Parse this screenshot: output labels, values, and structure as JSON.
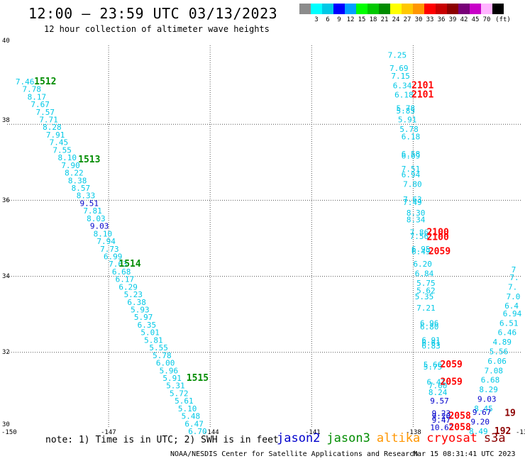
{
  "header": {
    "title": "12:00 — 23:59 UTC 03/13/2023",
    "subtitle": "12 hour collection of altimeter wave heights"
  },
  "color_scale": {
    "unit": "(ft)",
    "colors": [
      "#8c8c8c",
      "#00ffff",
      "#00c8e6",
      "#0000ff",
      "#00a0ff",
      "#00ff00",
      "#00c800",
      "#008c00",
      "#ffff00",
      "#ffc800",
      "#ff9600",
      "#ff0000",
      "#c80000",
      "#8c0000",
      "#780078",
      "#c800c8",
      "#ffb4ff",
      "#000000"
    ],
    "labels": [
      "3",
      "6",
      "9",
      "12",
      "15",
      "18",
      "21",
      "24",
      "27",
      "30",
      "33",
      "36",
      "39",
      "42",
      "45",
      "70"
    ]
  },
  "axes": {
    "x_ticks": [
      "-150",
      "-147",
      "-144",
      "-141",
      "-138",
      "-13"
    ],
    "y_ticks": [
      "30",
      "32",
      "34",
      "36",
      "38",
      "40"
    ],
    "lon_range": [
      -150,
      -135
    ],
    "lat_range": [
      30,
      40
    ],
    "grid": "dotted"
  },
  "satellite_colors": {
    "jason2": "#0000cc",
    "jason3": "#008c00",
    "altika": "#ff9600",
    "cryosat": "#ff0000",
    "s3a": "#8c0000",
    "cyan": "#00c8e6"
  },
  "wave_heights": [
    {
      "lon": -149.75,
      "lat": 39.05,
      "v": "7.46",
      "c": "cyan"
    },
    {
      "lon": -149.55,
      "lat": 38.85,
      "v": "7.78",
      "c": "cyan"
    },
    {
      "lon": -149.4,
      "lat": 38.65,
      "v": "8.17",
      "c": "cyan"
    },
    {
      "lon": -149.3,
      "lat": 38.45,
      "v": "7.67",
      "c": "cyan"
    },
    {
      "lon": -149.15,
      "lat": 38.25,
      "v": "7.57",
      "c": "cyan"
    },
    {
      "lon": -149.05,
      "lat": 38.05,
      "v": "7.71",
      "c": "cyan"
    },
    {
      "lon": -148.95,
      "lat": 37.85,
      "v": "8.28",
      "c": "cyan"
    },
    {
      "lon": -148.85,
      "lat": 37.65,
      "v": "7.91",
      "c": "cyan"
    },
    {
      "lon": -148.75,
      "lat": 37.45,
      "v": "7.45",
      "c": "cyan"
    },
    {
      "lon": -148.65,
      "lat": 37.25,
      "v": "7.55",
      "c": "cyan"
    },
    {
      "lon": -148.5,
      "lat": 37.05,
      "v": "8.10",
      "c": "cyan"
    },
    {
      "lon": -148.4,
      "lat": 36.85,
      "v": "7.90",
      "c": "cyan"
    },
    {
      "lon": -148.3,
      "lat": 36.65,
      "v": "8.22",
      "c": "cyan"
    },
    {
      "lon": -148.2,
      "lat": 36.45,
      "v": "8.38",
      "c": "cyan"
    },
    {
      "lon": -148.1,
      "lat": 36.25,
      "v": "8.57",
      "c": "cyan"
    },
    {
      "lon": -147.95,
      "lat": 36.05,
      "v": "8.33",
      "c": "cyan"
    },
    {
      "lon": -147.85,
      "lat": 35.85,
      "v": "9.51",
      "c": "jason2"
    },
    {
      "lon": -147.75,
      "lat": 35.65,
      "v": "7.81",
      "c": "cyan"
    },
    {
      "lon": -147.65,
      "lat": 35.45,
      "v": "8.03",
      "c": "cyan"
    },
    {
      "lon": -147.55,
      "lat": 35.25,
      "v": "9.03",
      "c": "jason2"
    },
    {
      "lon": -147.45,
      "lat": 35.05,
      "v": "8.10",
      "c": "cyan"
    },
    {
      "lon": -147.35,
      "lat": 34.85,
      "v": "7.94",
      "c": "cyan"
    },
    {
      "lon": -147.25,
      "lat": 34.65,
      "v": "7.73",
      "c": "cyan"
    },
    {
      "lon": -147.15,
      "lat": 34.45,
      "v": "6.99",
      "c": "cyan"
    },
    {
      "lon": -147.0,
      "lat": 34.25,
      "v": "7.63",
      "c": "cyan"
    },
    {
      "lon": -146.9,
      "lat": 34.05,
      "v": "6.68",
      "c": "cyan"
    },
    {
      "lon": -146.8,
      "lat": 33.85,
      "v": "6.17",
      "c": "cyan"
    },
    {
      "lon": -146.7,
      "lat": 33.65,
      "v": "6.29",
      "c": "cyan"
    },
    {
      "lon": -146.55,
      "lat": 33.45,
      "v": "5.23",
      "c": "cyan"
    },
    {
      "lon": -146.45,
      "lat": 33.25,
      "v": "6.38",
      "c": "cyan"
    },
    {
      "lon": -146.35,
      "lat": 33.05,
      "v": "5.93",
      "c": "cyan"
    },
    {
      "lon": -146.25,
      "lat": 32.85,
      "v": "5.97",
      "c": "cyan"
    },
    {
      "lon": -146.15,
      "lat": 32.65,
      "v": "6.35",
      "c": "cyan"
    },
    {
      "lon": -146.05,
      "lat": 32.45,
      "v": "5.01",
      "c": "cyan"
    },
    {
      "lon": -145.95,
      "lat": 32.25,
      "v": "5.81",
      "c": "cyan"
    },
    {
      "lon": -145.8,
      "lat": 32.05,
      "v": "5.55",
      "c": "cyan"
    },
    {
      "lon": -145.7,
      "lat": 31.85,
      "v": "5.78",
      "c": "cyan"
    },
    {
      "lon": -145.6,
      "lat": 31.65,
      "v": "6.00",
      "c": "cyan"
    },
    {
      "lon": -145.5,
      "lat": 31.45,
      "v": "5.96",
      "c": "cyan"
    },
    {
      "lon": -145.4,
      "lat": 31.25,
      "v": "5.91",
      "c": "cyan"
    },
    {
      "lon": -145.3,
      "lat": 31.05,
      "v": "5.31",
      "c": "cyan"
    },
    {
      "lon": -145.2,
      "lat": 30.85,
      "v": "5.72",
      "c": "cyan"
    },
    {
      "lon": -145.05,
      "lat": 30.65,
      "v": "5.61",
      "c": "cyan"
    },
    {
      "lon": -144.95,
      "lat": 30.45,
      "v": "5.10",
      "c": "cyan"
    },
    {
      "lon": -144.85,
      "lat": 30.25,
      "v": "5.48",
      "c": "cyan"
    },
    {
      "lon": -144.75,
      "lat": 30.05,
      "v": "6.47",
      "c": "cyan"
    },
    {
      "lon": -144.65,
      "lat": 29.85,
      "v": "6.70",
      "c": "cyan"
    },
    {
      "lon": -138.75,
      "lat": 39.75,
      "v": "7.25",
      "c": "cyan"
    },
    {
      "lon": -138.7,
      "lat": 39.4,
      "v": "7.69",
      "c": "cyan"
    },
    {
      "lon": -138.65,
      "lat": 39.2,
      "v": "7.15",
      "c": "cyan"
    },
    {
      "lon": -138.6,
      "lat": 38.95,
      "v": "6.34",
      "c": "cyan"
    },
    {
      "lon": -138.55,
      "lat": 38.7,
      "v": "6.18",
      "c": "cyan"
    },
    {
      "lon": -138.5,
      "lat": 38.35,
      "v": "5.78",
      "c": "cyan"
    },
    {
      "lon": -138.5,
      "lat": 38.28,
      "v": "5.85",
      "c": "cyan"
    },
    {
      "lon": -138.45,
      "lat": 38.05,
      "v": "5.91",
      "c": "cyan"
    },
    {
      "lon": -138.4,
      "lat": 37.8,
      "v": "5.78",
      "c": "cyan"
    },
    {
      "lon": -138.35,
      "lat": 37.6,
      "v": "6.18",
      "c": "cyan"
    },
    {
      "lon": -138.35,
      "lat": 37.15,
      "v": "6.58",
      "c": "cyan"
    },
    {
      "lon": -138.35,
      "lat": 37.1,
      "v": "6.69",
      "c": "cyan"
    },
    {
      "lon": -138.35,
      "lat": 36.75,
      "v": "7.51",
      "c": "cyan"
    },
    {
      "lon": -138.35,
      "lat": 36.6,
      "v": "6.94",
      "c": "cyan"
    },
    {
      "lon": -138.3,
      "lat": 36.35,
      "v": "7.80",
      "c": "cyan"
    },
    {
      "lon": -138.3,
      "lat": 35.95,
      "v": "7.63",
      "c": "cyan"
    },
    {
      "lon": -138.3,
      "lat": 35.88,
      "v": "7.49",
      "c": "cyan"
    },
    {
      "lon": -138.2,
      "lat": 35.6,
      "v": "8.30",
      "c": "cyan"
    },
    {
      "lon": -138.2,
      "lat": 35.42,
      "v": "8.34",
      "c": "cyan"
    },
    {
      "lon": -138.1,
      "lat": 35.08,
      "v": "7.86",
      "c": "cyan"
    },
    {
      "lon": -138.1,
      "lat": 34.98,
      "v": "7.56",
      "c": "cyan"
    },
    {
      "lon": -138.05,
      "lat": 34.65,
      "v": "6.95",
      "c": "cyan"
    },
    {
      "lon": -138.05,
      "lat": 34.58,
      "v": "6.49",
      "c": "cyan"
    },
    {
      "lon": -138.0,
      "lat": 34.25,
      "v": "6.20",
      "c": "cyan"
    },
    {
      "lon": -137.95,
      "lat": 34.0,
      "v": "6.84",
      "c": "cyan"
    },
    {
      "lon": -137.9,
      "lat": 33.75,
      "v": "5.75",
      "c": "cyan"
    },
    {
      "lon": -137.9,
      "lat": 33.55,
      "v": "5.62",
      "c": "cyan"
    },
    {
      "lon": -137.95,
      "lat": 33.4,
      "v": "5.35",
      "c": "cyan"
    },
    {
      "lon": -137.9,
      "lat": 33.1,
      "v": "7.21",
      "c": "cyan"
    },
    {
      "lon": -137.8,
      "lat": 32.7,
      "v": "6.96",
      "c": "cyan"
    },
    {
      "lon": -137.8,
      "lat": 32.6,
      "v": "6.80",
      "c": "cyan"
    },
    {
      "lon": -137.75,
      "lat": 32.25,
      "v": "6.91",
      "c": "cyan"
    },
    {
      "lon": -137.75,
      "lat": 32.18,
      "v": "6.61",
      "c": "cyan"
    },
    {
      "lon": -137.75,
      "lat": 32.1,
      "v": "6.83",
      "c": "cyan"
    },
    {
      "lon": -137.7,
      "lat": 31.6,
      "v": "5.66",
      "c": "cyan"
    },
    {
      "lon": -137.7,
      "lat": 31.55,
      "v": "5.75",
      "c": "cyan"
    },
    {
      "lon": -137.6,
      "lat": 31.15,
      "v": "6.41",
      "c": "cyan"
    },
    {
      "lon": -137.55,
      "lat": 31.05,
      "v": "7.00",
      "c": "cyan"
    },
    {
      "lon": -137.55,
      "lat": 30.88,
      "v": "8.24",
      "c": "cyan"
    },
    {
      "lon": -137.5,
      "lat": 30.65,
      "v": "9.57",
      "c": "jason2"
    },
    {
      "lon": -137.45,
      "lat": 30.33,
      "v": "9.23",
      "c": "jason2"
    },
    {
      "lon": -137.45,
      "lat": 30.25,
      "v": "9.20",
      "c": "jason2"
    },
    {
      "lon": -137.45,
      "lat": 30.15,
      "v": "9.47",
      "c": "jason2"
    },
    {
      "lon": -137.5,
      "lat": 29.95,
      "v": "10.62",
      "c": "jason2"
    },
    {
      "lon": -135.1,
      "lat": 34.1,
      "v": "7",
      "c": "cyan"
    },
    {
      "lon": -135.15,
      "lat": 33.9,
      "v": "7.",
      "c": "cyan"
    },
    {
      "lon": -135.2,
      "lat": 33.65,
      "v": "7.",
      "c": "cyan"
    },
    {
      "lon": -135.25,
      "lat": 33.4,
      "v": "7.0",
      "c": "cyan"
    },
    {
      "lon": -135.3,
      "lat": 33.15,
      "v": "6.4",
      "c": "cyan"
    },
    {
      "lon": -135.35,
      "lat": 32.95,
      "v": "6.94",
      "c": "cyan"
    },
    {
      "lon": -135.45,
      "lat": 32.7,
      "v": "6.51",
      "c": "cyan"
    },
    {
      "lon": -135.5,
      "lat": 32.45,
      "v": "6.46",
      "c": "cyan"
    },
    {
      "lon": -135.65,
      "lat": 32.2,
      "v": "4.89",
      "c": "cyan"
    },
    {
      "lon": -135.75,
      "lat": 31.95,
      "v": "5.56",
      "c": "cyan"
    },
    {
      "lon": -135.8,
      "lat": 31.7,
      "v": "6.06",
      "c": "cyan"
    },
    {
      "lon": -135.9,
      "lat": 31.45,
      "v": "7.08",
      "c": "cyan"
    },
    {
      "lon": -136.0,
      "lat": 31.2,
      "v": "6.68",
      "c": "cyan"
    },
    {
      "lon": -136.05,
      "lat": 30.95,
      "v": "8.29",
      "c": "cyan"
    },
    {
      "lon": -136.1,
      "lat": 30.7,
      "v": "9.03",
      "c": "jason2"
    },
    {
      "lon": -136.2,
      "lat": 30.45,
      "v": "8.45",
      "c": "cyan"
    },
    {
      "lon": -136.25,
      "lat": 30.35,
      "v": "9.67",
      "c": "jason2"
    },
    {
      "lon": -136.3,
      "lat": 30.1,
      "v": "9.20",
      "c": "jason2"
    },
    {
      "lon": -136.35,
      "lat": 29.85,
      "v": "8.49",
      "c": "cyan"
    }
  ],
  "pass_labels": [
    {
      "lon": -149.2,
      "lat": 39.05,
      "v": "1512",
      "c": "jason3"
    },
    {
      "lon": -147.9,
      "lat": 37.0,
      "v": "1513",
      "c": "jason3"
    },
    {
      "lon": -146.7,
      "lat": 34.25,
      "v": "1514",
      "c": "jason3"
    },
    {
      "lon": -144.7,
      "lat": 31.25,
      "v": "1515",
      "c": "jason3"
    },
    {
      "lon": -138.05,
      "lat": 38.95,
      "v": "2101",
      "c": "cryosat"
    },
    {
      "lon": -138.05,
      "lat": 38.7,
      "v": "2101",
      "c": "cryosat"
    },
    {
      "lon": -137.6,
      "lat": 35.08,
      "v": "2100",
      "c": "cryosat"
    },
    {
      "lon": -137.6,
      "lat": 34.95,
      "v": "2100",
      "c": "cryosat"
    },
    {
      "lon": -137.55,
      "lat": 34.58,
      "v": "2059",
      "c": "cryosat"
    },
    {
      "lon": -137.2,
      "lat": 31.6,
      "v": "2059",
      "c": "cryosat"
    },
    {
      "lon": -137.2,
      "lat": 31.15,
      "v": "2059",
      "c": "cryosat"
    },
    {
      "lon": -136.95,
      "lat": 30.25,
      "v": "2058",
      "c": "cryosat"
    },
    {
      "lon": -136.95,
      "lat": 29.95,
      "v": "2058",
      "c": "cryosat"
    },
    {
      "lon": -135.3,
      "lat": 30.33,
      "v": "19",
      "c": "s3a"
    },
    {
      "lon": -135.6,
      "lat": 29.85,
      "v": "192",
      "c": "s3a"
    }
  ],
  "footer": {
    "note": "note: 1) Time is in UTC; 2) SWH is in feet",
    "legend": [
      {
        "label": "jason2",
        "c": "jason2"
      },
      {
        "label": "jason3",
        "c": "jason3"
      },
      {
        "label": "altika",
        "c": "altika"
      },
      {
        "label": "cryosat",
        "c": "cryosat"
      },
      {
        "label": "s3a",
        "c": "s3a"
      }
    ],
    "credit": "NOAA/NESDIS Center for Satellite Applications and Research",
    "timestamp": "Mar 15 08:31:41 UTC 2023"
  }
}
